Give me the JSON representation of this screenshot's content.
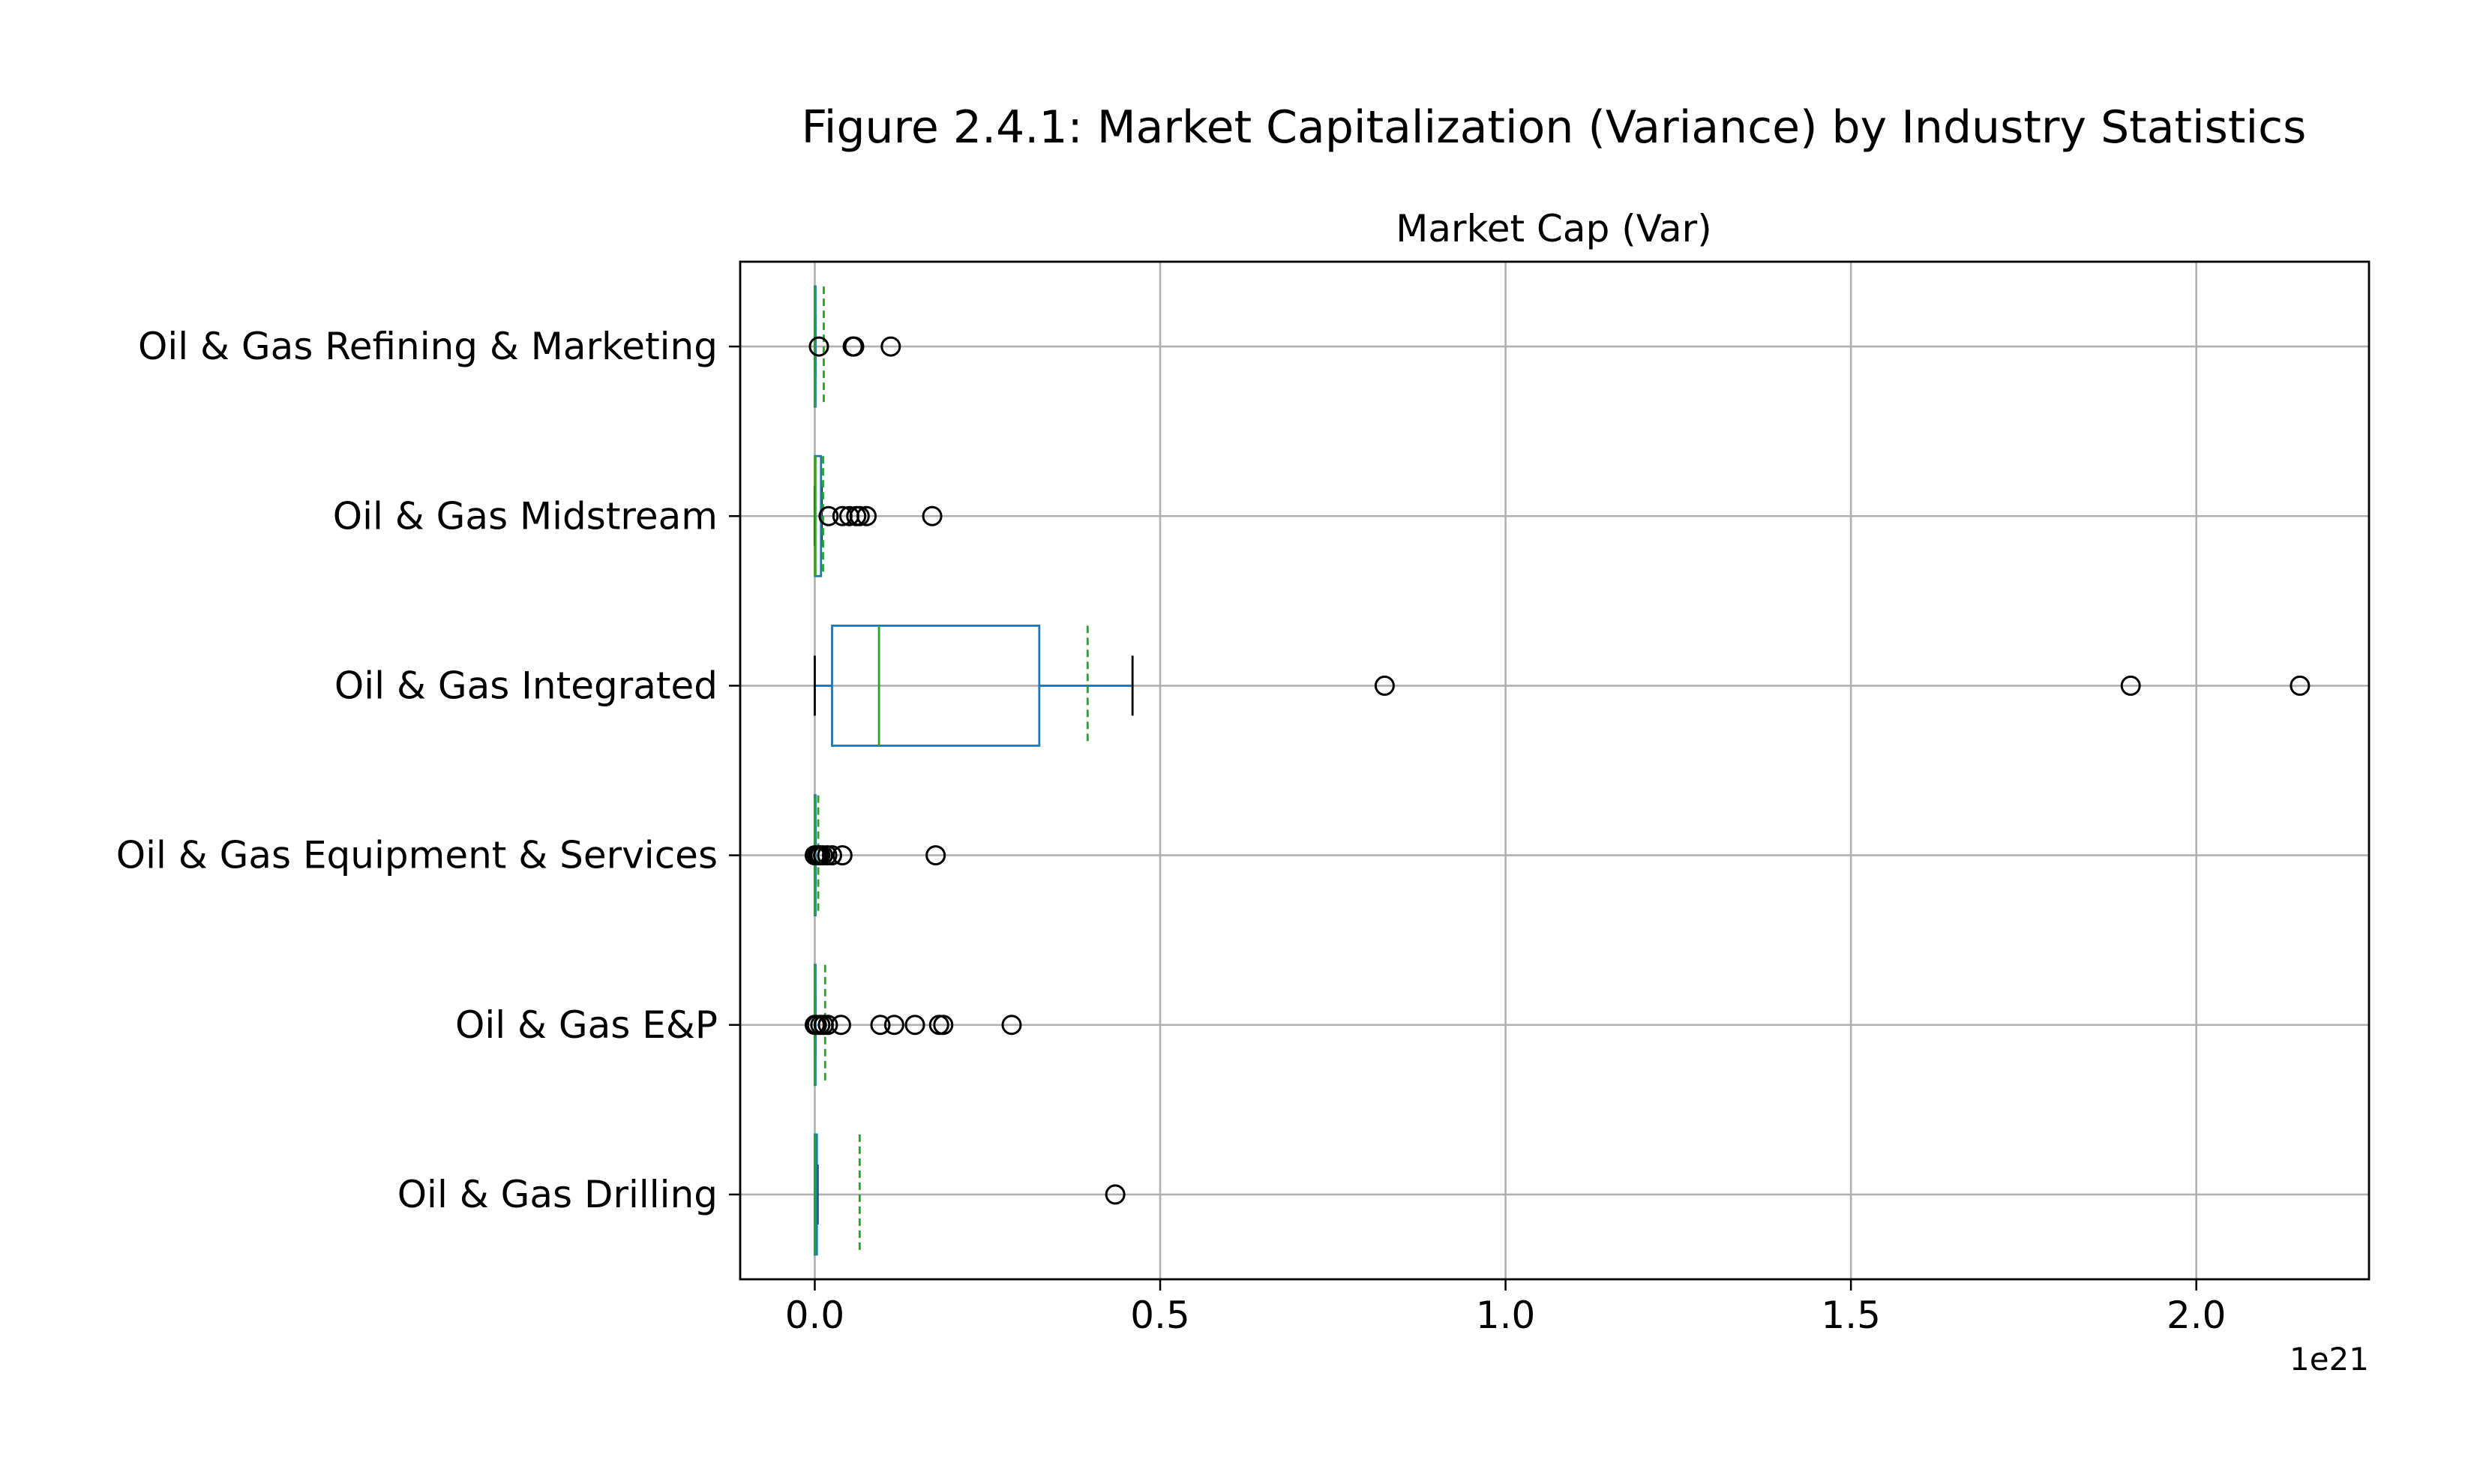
{
  "figure_title": "Figure 2.4.1: Market Capitalization (Variance) by Industry Statistics",
  "chart_data": {
    "type": "boxplot",
    "orientation": "horizontal",
    "title": "Market Cap (Var)",
    "xlabel": "",
    "ylabel": "",
    "x_offset_label": "1e21",
    "x_scale_multiplier": 1e+21,
    "xlim": [
      -0.108,
      2.25
    ],
    "x_ticks": [
      0.0,
      0.5,
      1.0,
      1.5,
      2.0
    ],
    "x_tick_labels": [
      "0.0",
      "0.5",
      "1.0",
      "1.5",
      "2.0"
    ],
    "grid": true,
    "colors": {
      "box": "#1f77b4",
      "median": "#2ca02c",
      "mean": "#2ca02c",
      "whisker": "#1f77b4",
      "cap": "#000000",
      "flier": "#000000",
      "grid": "#b0b0b0",
      "axis": "#000000"
    },
    "categories": [
      "Oil & Gas Refining & Marketing",
      "Oil & Gas Midstream",
      "Oil & Gas Integrated",
      "Oil & Gas Equipment & Services",
      "Oil & Gas E&P",
      "Oil & Gas Drilling"
    ],
    "boxes": [
      {
        "category": "Oil & Gas Refining & Marketing",
        "whisker_low": 0.0,
        "q1": 0.0,
        "median": 0.0003,
        "q3": 0.0006,
        "whisker_high": 0.001,
        "mean": 0.013,
        "fliers": [
          0.006,
          0.055,
          0.057,
          0.11
        ]
      },
      {
        "category": "Oil & Gas Midstream",
        "whisker_low": 0.0,
        "q1": 0.0003,
        "median": 0.001,
        "q3": 0.009,
        "whisker_high": 0.01,
        "mean": 0.012,
        "fliers": [
          0.02,
          0.04,
          0.05,
          0.06,
          0.065,
          0.075,
          0.17
        ]
      },
      {
        "category": "Oil & Gas Integrated",
        "whisker_low": 0.0,
        "q1": 0.025,
        "median": 0.093,
        "q3": 0.325,
        "whisker_high": 0.46,
        "mean": 0.395,
        "fliers": [
          0.825,
          1.905,
          2.15
        ]
      },
      {
        "category": "Oil & Gas Equipment & Services",
        "whisker_low": 0.0,
        "q1": 0.0,
        "median": 0.0002,
        "q3": 0.0005,
        "whisker_high": 0.001,
        "mean": 0.005,
        "fliers": [
          0.0,
          0.002,
          0.005,
          0.008,
          0.012,
          0.018,
          0.025,
          0.04,
          0.175
        ]
      },
      {
        "category": "Oil & Gas E&P",
        "whisker_low": 0.0,
        "q1": 0.0,
        "median": 0.0002,
        "q3": 0.0006,
        "whisker_high": 0.001,
        "mean": 0.015,
        "fliers": [
          0.0,
          0.003,
          0.008,
          0.013,
          0.019,
          0.038,
          0.095,
          0.115,
          0.145,
          0.18,
          0.186,
          0.285
        ]
      },
      {
        "category": "Oil & Gas Drilling",
        "whisker_low": 0.0,
        "q1": 0.0,
        "median": 0.0005,
        "q3": 0.003,
        "whisker_high": 0.004,
        "mean": 0.065,
        "fliers": [
          0.435
        ]
      }
    ]
  }
}
